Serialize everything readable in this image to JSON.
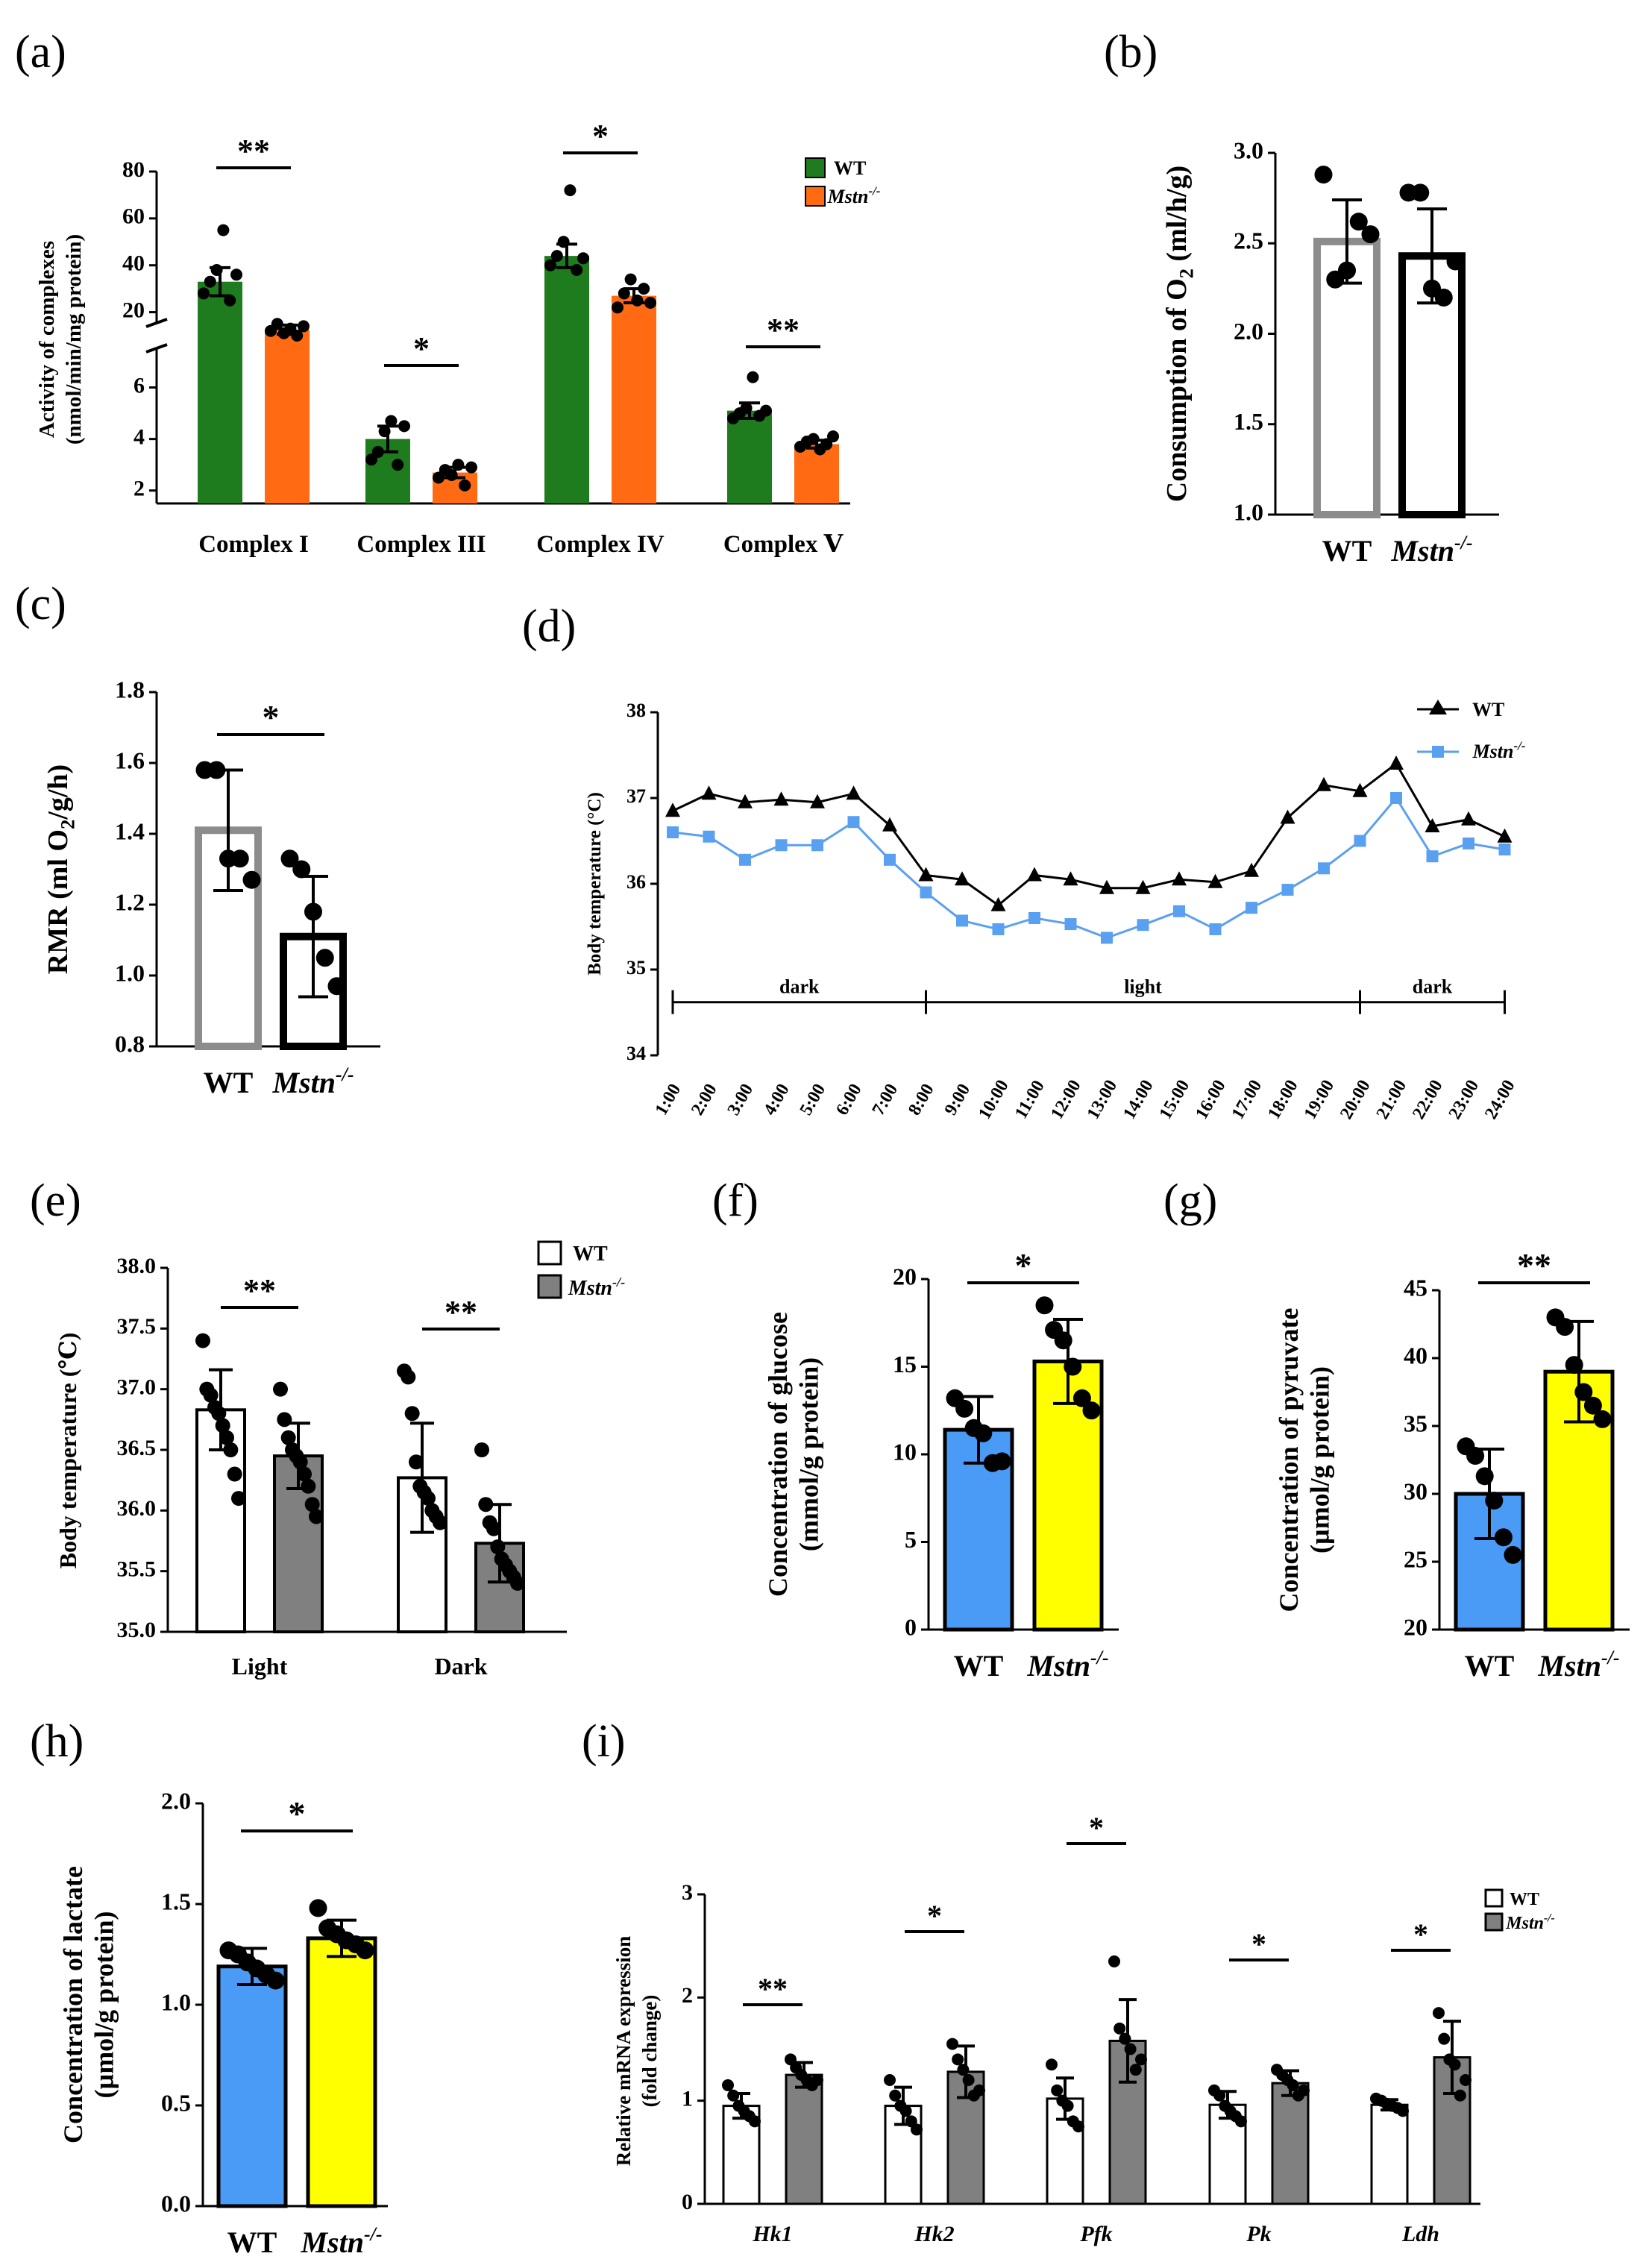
{
  "colors": {
    "wt_green": "#1e7b1e",
    "ko_orange": "#ff6a13",
    "blue": "#4a9bf5",
    "yellow": "#ffff00",
    "gray_bar": "#808080",
    "gray_outline": "#8c8c8c",
    "ko_light_blue": "#5aa0f0"
  },
  "chart_data": [
    {
      "id": "a",
      "panel_label": "(a)",
      "type": "bar",
      "ylabel_line1": "Activity of complexes",
      "ylabel_line2": "(nmol/min/mg protein)",
      "categories": [
        "Complex I",
        "Complex III",
        "Complex IV",
        "Complex Ⅴ"
      ],
      "axis_break": {
        "lower": [
          1.5,
          7
        ],
        "upper": [
          10,
          80
        ]
      },
      "yticks_lower": [
        "2",
        "4",
        "6"
      ],
      "yticks_upper": [
        "20",
        "40",
        "60",
        "80"
      ],
      "legend": [
        "WT",
        "Mstn",
        "-/-"
      ],
      "series": [
        {
          "name": "WT",
          "values": [
            33,
            4.0,
            44,
            5.1
          ],
          "err": [
            6,
            0.5,
            5,
            0.3
          ],
          "points": [
            [
              28,
              33,
              38,
              55,
              25,
              36
            ],
            [
              3.2,
              3.5,
              4.3,
              4.7,
              3.0,
              4.5
            ],
            [
              40,
              44,
              50,
              72,
              38,
              43
            ],
            [
              4.8,
              5.0,
              5.2,
              6.4,
              4.9,
              5.1
            ]
          ]
        },
        {
          "name": "Mstn-/-",
          "values": [
            12.5,
            2.7,
            27,
            3.8
          ],
          "err": [
            2,
            0.2,
            3,
            0.15
          ],
          "points": [
            [
              12,
              15,
              11,
              13,
              10,
              14
            ],
            [
              2.5,
              2.8,
              2.6,
              3.0,
              2.2,
              2.9
            ],
            [
              22,
              28,
              34,
              25,
              30,
              24
            ],
            [
              3.7,
              3.9,
              4.0,
              3.6,
              3.8,
              4.1
            ]
          ]
        }
      ],
      "significance": [
        "**",
        "*",
        "*",
        "**"
      ]
    },
    {
      "id": "b",
      "panel_label": "(b)",
      "type": "bar",
      "ylabel": "Consumption of O",
      "ylabel_sub": "2",
      "ylabel_tail": " (ml/h/g)",
      "ylim": [
        1.0,
        3.0
      ],
      "yticks": [
        "1.0",
        "1.5",
        "2.0",
        "2.5",
        "3.0"
      ],
      "categories": [
        "WT",
        "Mstn"
      ],
      "cat_sup": [
        "",
        "-/-"
      ],
      "values": [
        2.51,
        2.43
      ],
      "err": [
        0.23,
        0.26
      ],
      "points": [
        [
          2.88,
          2.3,
          2.35,
          2.62,
          2.55
        ],
        [
          2.78,
          2.78,
          2.25,
          2.2,
          2.4
        ]
      ],
      "significance": null
    },
    {
      "id": "c",
      "panel_label": "(c)",
      "type": "bar",
      "ylabel": "RMR (ml O",
      "ylabel_sub": "2",
      "ylabel_tail": "/g/h)",
      "ylim": [
        0.8,
        1.8
      ],
      "yticks": [
        "0.8",
        "1.0",
        "1.2",
        "1.4",
        "1.6",
        "1.8"
      ],
      "categories": [
        "WT",
        "Mstn"
      ],
      "cat_sup": [
        "",
        "-/-"
      ],
      "values": [
        1.41,
        1.11
      ],
      "err": [
        0.17,
        0.17
      ],
      "points": [
        [
          1.58,
          1.58,
          1.33,
          1.33,
          1.27
        ],
        [
          1.33,
          1.3,
          1.18,
          1.05,
          0.97
        ]
      ],
      "significance": "*"
    },
    {
      "id": "d",
      "panel_label": "(d)",
      "type": "line",
      "ylabel": "Body temperature (°C)",
      "ylim": [
        34,
        38
      ],
      "yticks": [
        "34",
        "35",
        "36",
        "37",
        "38"
      ],
      "x": [
        "1:00",
        "2:00",
        "3:00",
        "4:00",
        "5:00",
        "6:00",
        "7:00",
        "8:00",
        "9:00",
        "10:00",
        "11:00",
        "12:00",
        "13:00",
        "14:00",
        "15:00",
        "16:00",
        "17:00",
        "18:00",
        "19:00",
        "20:00",
        "21:00",
        "22:00",
        "23:00",
        "24:00"
      ],
      "series": [
        {
          "name": "WT",
          "values": [
            36.85,
            37.05,
            36.95,
            36.98,
            36.95,
            37.05,
            36.68,
            36.1,
            36.05,
            35.75,
            36.1,
            36.05,
            35.95,
            35.95,
            36.05,
            36.02,
            36.15,
            36.77,
            37.15,
            37.08,
            37.4,
            36.67,
            36.75,
            36.55
          ]
        },
        {
          "name": "Mstn",
          "values": [
            36.6,
            36.55,
            36.28,
            36.45,
            36.45,
            36.72,
            36.28,
            35.9,
            35.57,
            35.47,
            35.6,
            35.53,
            35.37,
            35.52,
            35.68,
            35.47,
            35.72,
            35.93,
            36.18,
            36.5,
            37.0,
            36.32,
            36.47,
            36.4
          ]
        }
      ],
      "phases": [
        {
          "label": "dark",
          "from": "1:00",
          "to": "8:00"
        },
        {
          "label": "light",
          "from": "8:00",
          "to": "20:00"
        },
        {
          "label": "dark",
          "from": "20:00",
          "to": "24:00"
        }
      ],
      "legend": [
        "WT",
        "Mstn",
        "-/-"
      ]
    },
    {
      "id": "e",
      "panel_label": "(e)",
      "type": "bar",
      "ylabel": "Body temperature (℃)",
      "ylim": [
        35.0,
        38.0
      ],
      "yticks": [
        "35.0",
        "35.5",
        "36.0",
        "36.5",
        "37.0",
        "37.5",
        "38.0"
      ],
      "categories": [
        "Light",
        "Dark"
      ],
      "series": [
        {
          "name": "WT",
          "values": [
            36.83,
            36.27
          ],
          "err": [
            0.33,
            0.45
          ],
          "points": [
            [
              37.4,
              37.0,
              36.95,
              36.85,
              36.8,
              36.7,
              36.6,
              36.5,
              36.3,
              36.1
            ],
            [
              37.15,
              37.1,
              36.8,
              36.4,
              36.2,
              36.15,
              36.1,
              36.0,
              35.95,
              35.9
            ]
          ]
        },
        {
          "name": "Mstn-/-",
          "values": [
            36.45,
            35.73
          ],
          "err": [
            0.27,
            0.32
          ],
          "points": [
            [
              37.0,
              36.75,
              36.6,
              36.5,
              36.45,
              36.4,
              36.3,
              36.2,
              36.05,
              35.95
            ],
            [
              36.5,
              36.05,
              35.9,
              35.85,
              35.7,
              35.6,
              35.55,
              35.5,
              35.45,
              35.4
            ]
          ]
        }
      ],
      "significance": [
        "**",
        "**"
      ],
      "legend": [
        "WT",
        "Mstn",
        "-/-"
      ]
    },
    {
      "id": "f",
      "panel_label": "(f)",
      "type": "bar",
      "ylabel_line1": "Concentration of glucose",
      "ylabel_line2": "(mmol/g protein)",
      "ylim": [
        0,
        20
      ],
      "yticks": [
        "0",
        "5",
        "10",
        "15",
        "20"
      ],
      "categories": [
        "WT",
        "Mstn"
      ],
      "cat_sup": [
        "",
        "-/-"
      ],
      "values": [
        11.4,
        15.3
      ],
      "err": [
        1.9,
        2.4
      ],
      "points": [
        [
          13.2,
          12.6,
          11.5,
          11.2,
          9.5,
          9.6
        ],
        [
          18.5,
          17.1,
          16.5,
          15.0,
          13.2,
          12.5
        ]
      ],
      "significance": "*"
    },
    {
      "id": "g",
      "panel_label": "(g)",
      "type": "bar",
      "ylabel_line1": "Concentration of pyruvate",
      "ylabel_line2": "(µmol/g protein)",
      "ylim": [
        20,
        45
      ],
      "yticks": [
        "20",
        "25",
        "30",
        "35",
        "40",
        "45"
      ],
      "categories": [
        "WT",
        "Mstn"
      ],
      "cat_sup": [
        "",
        "-/-"
      ],
      "values": [
        30.0,
        39.0
      ],
      "err": [
        3.3,
        3.7
      ],
      "points": [
        [
          33.5,
          32.8,
          31.3,
          29.5,
          26.8,
          25.5
        ],
        [
          43.0,
          42.3,
          39.5,
          37.5,
          36.5,
          35.5
        ]
      ],
      "significance": "**"
    },
    {
      "id": "h",
      "panel_label": "(h)",
      "type": "bar",
      "ylabel_line1": "Concentration of lactate",
      "ylabel_line2": "(µmol/g protein)",
      "ylim": [
        0.0,
        2.0
      ],
      "yticks": [
        "0.0",
        "0.5",
        "1.0",
        "1.5",
        "2.0"
      ],
      "categories": [
        "WT",
        "Mstn"
      ],
      "cat_sup": [
        "",
        "-/-"
      ],
      "values": [
        1.19,
        1.33
      ],
      "err": [
        0.09,
        0.09
      ],
      "points": [
        [
          1.27,
          1.25,
          1.21,
          1.18,
          1.15,
          1.12
        ],
        [
          1.48,
          1.38,
          1.35,
          1.32,
          1.3,
          1.27
        ]
      ],
      "significance": "*"
    },
    {
      "id": "i",
      "panel_label": "(i)",
      "type": "bar",
      "ylabel_line1": "Relative mRNA expression",
      "ylabel_line2": "(fold change)",
      "ylim": [
        0,
        3
      ],
      "yticks": [
        "0",
        "1",
        "2",
        "3"
      ],
      "categories": [
        "Hk1",
        "Hk2",
        "Pfk",
        "Pk",
        "Ldh"
      ],
      "series": [
        {
          "name": "WT",
          "values": [
            0.95,
            0.95,
            1.02,
            0.96,
            0.96
          ],
          "err": [
            0.12,
            0.18,
            0.2,
            0.13,
            0.05
          ],
          "points": [
            [
              1.15,
              1.05,
              0.95,
              0.9,
              0.85,
              0.8
            ],
            [
              1.2,
              1.05,
              0.95,
              0.9,
              0.8,
              0.72
            ],
            [
              1.35,
              1.1,
              1.0,
              0.95,
              0.8,
              0.75
            ],
            [
              1.1,
              1.05,
              0.95,
              0.9,
              0.85,
              0.8
            ],
            [
              1.02,
              1.0,
              0.97,
              0.95,
              0.93,
              0.9
            ]
          ]
        },
        {
          "name": "Mstn-/-",
          "values": [
            1.25,
            1.28,
            1.58,
            1.17,
            1.42
          ],
          "err": [
            0.12,
            0.25,
            0.4,
            0.12,
            0.35
          ],
          "points": [
            [
              1.4,
              1.32,
              1.25,
              1.2,
              1.15,
              1.2
            ],
            [
              1.55,
              1.4,
              1.3,
              1.2,
              1.05,
              1.1
            ],
            [
              2.35,
              1.7,
              1.6,
              1.5,
              1.3,
              1.4
            ],
            [
              1.3,
              1.25,
              1.2,
              1.15,
              1.05,
              1.1
            ],
            [
              1.85,
              1.6,
              1.4,
              1.35,
              1.05,
              1.2
            ]
          ]
        }
      ],
      "significance": [
        "**",
        "*",
        "*",
        "*",
        "*"
      ],
      "legend": [
        "WT",
        "Mstn",
        "-/-"
      ]
    }
  ]
}
